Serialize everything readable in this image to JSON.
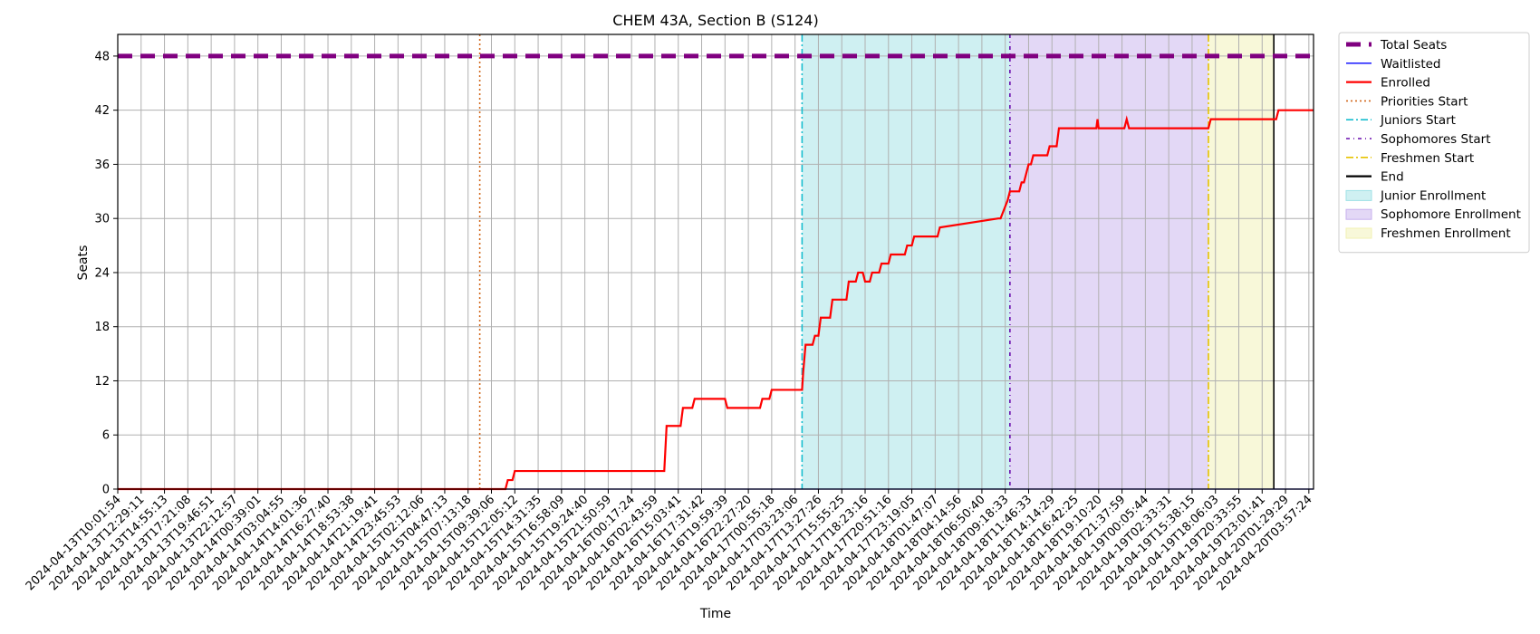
{
  "chart_data": {
    "type": "line",
    "title": "CHEM 43A, Section B (S124)",
    "xlabel": "Time",
    "ylabel": "Seats",
    "ylim": [
      0,
      50.4
    ],
    "yticks": [
      0,
      6,
      12,
      18,
      24,
      30,
      36,
      42,
      48
    ],
    "grid": true,
    "legend_position": "outside-right-top",
    "x_tick_labels": [
      "2024-04-13T10:01:54",
      "2024-04-13T12:29:11",
      "2024-04-13T14:55:13",
      "2024-04-13T17:21:08",
      "2024-04-13T19:46:51",
      "2024-04-13T22:12:57",
      "2024-04-14T00:39:01",
      "2024-04-14T03:04:55",
      "2024-04-14T14:01:36",
      "2024-04-14T16:27:40",
      "2024-04-14T18:53:38",
      "2024-04-14T21:19:41",
      "2024-04-14T23:45:53",
      "2024-04-15T02:12:06",
      "2024-04-15T04:47:13",
      "2024-04-15T07:13:18",
      "2024-04-15T09:39:06",
      "2024-04-15T12:05:12",
      "2024-04-15T14:31:35",
      "2024-04-15T16:58:09",
      "2024-04-15T19:24:40",
      "2024-04-15T21:50:59",
      "2024-04-16T00:17:24",
      "2024-04-16T02:43:59",
      "2024-04-16T15:03:41",
      "2024-04-16T17:31:42",
      "2024-04-16T19:59:39",
      "2024-04-16T22:27:20",
      "2024-04-17T00:55:18",
      "2024-04-17T03:23:06",
      "2024-04-17T13:27:26",
      "2024-04-17T15:55:25",
      "2024-04-17T18:23:16",
      "2024-04-17T20:51:16",
      "2024-04-17T23:19:05",
      "2024-04-18T01:47:07",
      "2024-04-18T04:14:56",
      "2024-04-18T06:50:40",
      "2024-04-18T09:18:33",
      "2024-04-18T11:46:33",
      "2024-04-18T14:14:29",
      "2024-04-18T16:42:25",
      "2024-04-18T19:10:20",
      "2024-04-18T21:37:59",
      "2024-04-19T00:05:44",
      "2024-04-19T02:33:31",
      "2024-04-19T15:38:15",
      "2024-04-19T18:06:03",
      "2024-04-19T20:33:55",
      "2024-04-19T23:01:41",
      "2024-04-20T01:29:29",
      "2024-04-20T03:57:24"
    ],
    "x_range": [
      0,
      51.2
    ],
    "series": [
      {
        "name": "Total Seats",
        "color": "#800080",
        "style": "dashed-thick",
        "x": [
          0,
          51.2
        ],
        "y": [
          48,
          48
        ]
      },
      {
        "name": "Waitlisted",
        "color": "#0000ff",
        "style": "solid-thin",
        "x": [
          0,
          51.2
        ],
        "y": [
          0,
          0
        ]
      },
      {
        "name": "Enrolled",
        "color": "#ff0000",
        "style": "solid",
        "x": [
          0,
          16.6,
          16.7,
          16.9,
          17.0,
          17.1,
          23.4,
          23.5,
          24.1,
          24.2,
          24.6,
          24.7,
          26.0,
          26.1,
          27.5,
          27.6,
          27.9,
          28.0,
          29.3,
          29.35,
          29.45,
          29.75,
          29.85,
          30.0,
          30.1,
          30.5,
          30.6,
          31.2,
          31.3,
          31.6,
          31.7,
          31.9,
          32.0,
          32.2,
          32.3,
          32.6,
          32.7,
          33.0,
          33.1,
          33.7,
          33.8,
          34.0,
          34.1,
          34.2,
          35.1,
          35.2,
          37.7,
          37.8,
          38.1,
          38.2,
          38.6,
          38.7,
          38.8,
          38.9,
          39.0,
          39.1,
          39.2,
          39.8,
          39.9,
          40.2,
          40.3,
          41.9,
          41.95,
          42.0,
          43.1,
          43.2,
          43.3,
          46.7,
          46.8,
          49.6,
          49.7,
          51.2
        ],
        "y": [
          0,
          0,
          1,
          1,
          2,
          2,
          2,
          7,
          7,
          9,
          9,
          10,
          10,
          9,
          9,
          10,
          10,
          11,
          11,
          13,
          16,
          16,
          17,
          17,
          19,
          19,
          21,
          21,
          23,
          23,
          24,
          24,
          23,
          23,
          24,
          24,
          25,
          25,
          26,
          26,
          27,
          27,
          28,
          28,
          28,
          29,
          30,
          30,
          32,
          33,
          33,
          34,
          34,
          35,
          36,
          36,
          37,
          37,
          38,
          38,
          40,
          40,
          41,
          40,
          40,
          41,
          40,
          40,
          41,
          41,
          42,
          42
        ]
      }
    ],
    "vertical_lines": [
      {
        "name": "Priorities Start",
        "x": 15.5,
        "color": "#d2691e",
        "style": "dotted"
      },
      {
        "name": "Juniors Start",
        "x": 29.3,
        "color": "#17becf",
        "style": "dashdot"
      },
      {
        "name": "Sophomores Start",
        "x": 38.2,
        "color": "#6a0dad",
        "style": "loosely-dashdot"
      },
      {
        "name": "Freshmen Start",
        "x": 46.7,
        "color": "#e6c300",
        "style": "dashdot"
      },
      {
        "name": "End",
        "x": 49.5,
        "color": "#000000",
        "style": "solid"
      }
    ],
    "shaded_regions": [
      {
        "name": "Junior Enrollment",
        "x0": 29.3,
        "x1": 38.2,
        "color": "#9fe2e6"
      },
      {
        "name": "Sophomore Enrollment",
        "x0": 38.2,
        "x1": 46.7,
        "color": "#c7b1ee"
      },
      {
        "name": "Freshmen Enrollment",
        "x0": 46.7,
        "x1": 49.5,
        "color": "#f2f2b3"
      }
    ],
    "legend": [
      {
        "label": "Total Seats",
        "kind": "line",
        "color": "#800080",
        "style": "dashed-thick"
      },
      {
        "label": "Waitlisted",
        "kind": "line",
        "color": "#0000ff",
        "style": "solid-thin"
      },
      {
        "label": "Enrolled",
        "kind": "line",
        "color": "#ff0000",
        "style": "solid"
      },
      {
        "label": "Priorities Start",
        "kind": "line",
        "color": "#d2691e",
        "style": "dotted"
      },
      {
        "label": "Juniors Start",
        "kind": "line",
        "color": "#17becf",
        "style": "dashdot"
      },
      {
        "label": "Sophomores Start",
        "kind": "line",
        "color": "#6a0dad",
        "style": "loosely-dashdot"
      },
      {
        "label": "Freshmen Start",
        "kind": "line",
        "color": "#e6c300",
        "style": "dashdot"
      },
      {
        "label": "End",
        "kind": "line",
        "color": "#000000",
        "style": "solid"
      },
      {
        "label": "Junior Enrollment",
        "kind": "patch",
        "color": "#9fe2e6"
      },
      {
        "label": "Sophomore Enrollment",
        "kind": "patch",
        "color": "#c7b1ee"
      },
      {
        "label": "Freshmen Enrollment",
        "kind": "patch",
        "color": "#f2f2b3"
      }
    ]
  }
}
